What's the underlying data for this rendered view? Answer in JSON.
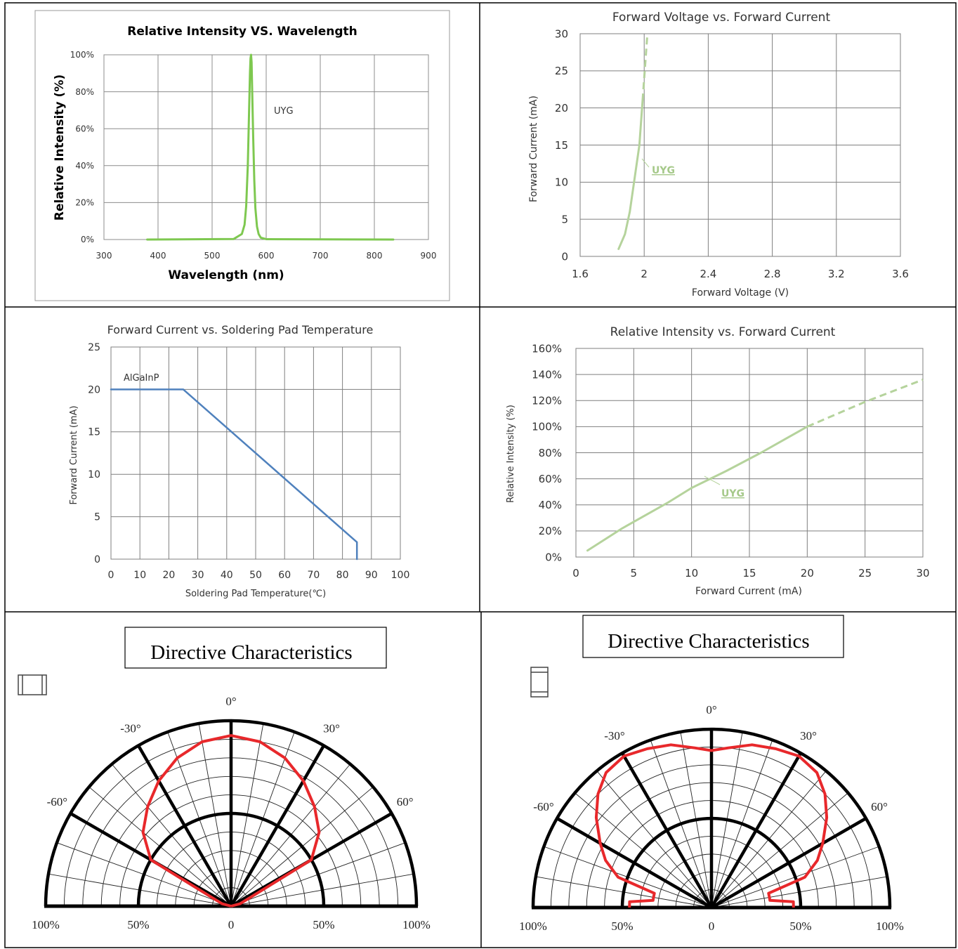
{
  "chart_data": [
    {
      "type": "line",
      "title": "Relative Intensity VS. Wavelength",
      "xlabel": "Wavelength (nm)",
      "ylabel": "Relative Intensity (%)",
      "xlim": [
        300,
        900
      ],
      "ylim": [
        0,
        100
      ],
      "x_ticks": [
        "300",
        "400",
        "500",
        "600",
        "700",
        "800",
        "900"
      ],
      "y_ticks": [
        "0%",
        "20%",
        "40%",
        "60%",
        "80%",
        "100%"
      ],
      "grid": true,
      "color": "#7ec850",
      "series": [
        {
          "name": "UYG",
          "x": [
            380,
            540,
            555,
            560,
            563,
            566,
            568,
            570,
            571,
            572,
            573,
            574,
            576,
            578,
            580,
            583,
            586,
            590,
            600,
            835
          ],
          "y": [
            0,
            0.3,
            3,
            8,
            18,
            40,
            65,
            90,
            98,
            100,
            96,
            82,
            55,
            32,
            17,
            7,
            3,
            1,
            0.2,
            0
          ]
        }
      ]
    },
    {
      "type": "line",
      "title": "Forward Voltage vs. Forward Current",
      "xlabel": "Forward Voltage (V)",
      "ylabel": "Forward Current  (mA)",
      "xlim": [
        1.6,
        3.6
      ],
      "ylim": [
        0,
        30
      ],
      "x_ticks": [
        "1.6",
        "2",
        "2.4",
        "2.8",
        "3.2",
        "3.6"
      ],
      "y_ticks": [
        "0",
        "5",
        "10",
        "15",
        "20",
        "25",
        "30"
      ],
      "grid": true,
      "color": "#b5d39c",
      "series": [
        {
          "name": "UYG",
          "x": [
            1.84,
            1.88,
            1.91,
            1.93,
            1.95,
            1.97,
            1.98,
            1.99
          ],
          "y": [
            1,
            3,
            6,
            9,
            12,
            15,
            18,
            21
          ],
          "dashed_x": [
            1.99,
            2.0,
            2.01,
            2.02
          ],
          "dashed_y": [
            21,
            24,
            27,
            30
          ]
        }
      ]
    },
    {
      "type": "line",
      "title": "Forward Current  vs. Soldering Pad Temperature",
      "xlabel": "Soldering Pad Temperature(℃)",
      "ylabel": "Forward Current (mA)",
      "xlim": [
        0,
        100
      ],
      "ylim": [
        0,
        25
      ],
      "x_ticks": [
        "0",
        "10",
        "20",
        "30",
        "40",
        "50",
        "60",
        "70",
        "80",
        "90",
        "100"
      ],
      "y_ticks": [
        "0",
        "5",
        "10",
        "15",
        "20",
        "25"
      ],
      "grid": true,
      "color": "#4f81bd",
      "series": [
        {
          "name": "AlGaInP",
          "x": [
            0,
            25,
            85,
            85
          ],
          "y": [
            20,
            20,
            2,
            0
          ]
        }
      ]
    },
    {
      "type": "line",
      "title": "Relative Intensity vs. Forward Current",
      "xlabel": "Forward Current (mA)",
      "ylabel": "Relative Intensity (%)",
      "xlim": [
        0,
        30
      ],
      "ylim": [
        0,
        160
      ],
      "x_ticks": [
        "0",
        "5",
        "10",
        "15",
        "20",
        "25",
        "30"
      ],
      "y_ticks": [
        "0%",
        "20%",
        "40%",
        "60%",
        "80%",
        "100%",
        "120%",
        "140%",
        "160%"
      ],
      "grid": true,
      "color": "#b5d39c",
      "series": [
        {
          "name": "UYG",
          "x": [
            1,
            4,
            8,
            10,
            13,
            16,
            18,
            20
          ],
          "y": [
            5,
            22,
            42,
            53,
            66,
            80,
            90,
            100
          ],
          "dashed_x": [
            20,
            25,
            30
          ],
          "dashed_y": [
            100,
            119,
            136
          ]
        }
      ]
    },
    {
      "type": "polar",
      "title": "Directive Characteristics",
      "angle_labels": [
        "0°",
        "30°",
        "-30°",
        "60°",
        "-60°"
      ],
      "radial_labels": [
        "100%",
        "50%",
        "0",
        "50%",
        "100%"
      ],
      "color": "#e8282b",
      "series": [
        {
          "angles_deg": [
            -90,
            -75,
            -60,
            -50,
            -40,
            -30,
            -20,
            -10,
            0,
            10,
            20,
            30,
            40,
            50,
            60,
            75,
            90
          ],
          "values": [
            0,
            0.05,
            0.5,
            0.62,
            0.7,
            0.78,
            0.85,
            0.9,
            0.92,
            0.9,
            0.85,
            0.78,
            0.7,
            0.62,
            0.5,
            0.05,
            0
          ]
        }
      ]
    },
    {
      "type": "polar",
      "title": "Directive Characteristics",
      "angle_labels": [
        "0°",
        "30°",
        "-30°",
        "60°",
        "-60°"
      ],
      "radial_labels": [
        "100%",
        "50%",
        "0",
        "50%",
        "100%"
      ],
      "color": "#e8282b",
      "series": [
        {
          "angles_deg": [
            -90,
            -86,
            -83,
            -80,
            -76,
            -72,
            -66,
            -60,
            -52,
            -45,
            -38,
            -30,
            -22,
            -14,
            -6,
            0,
            6,
            14,
            22,
            30,
            38,
            45,
            52,
            60,
            66,
            72,
            76,
            80,
            83,
            86,
            90
          ],
          "values": [
            0.46,
            0.46,
            0.33,
            0.33,
            0.33,
            0.55,
            0.65,
            0.72,
            0.82,
            0.9,
            0.96,
            0.98,
            0.96,
            0.94,
            0.9,
            0.88,
            0.9,
            0.94,
            0.96,
            0.98,
            0.96,
            0.9,
            0.82,
            0.72,
            0.65,
            0.55,
            0.33,
            0.33,
            0.33,
            0.46,
            0.46
          ]
        }
      ]
    }
  ]
}
